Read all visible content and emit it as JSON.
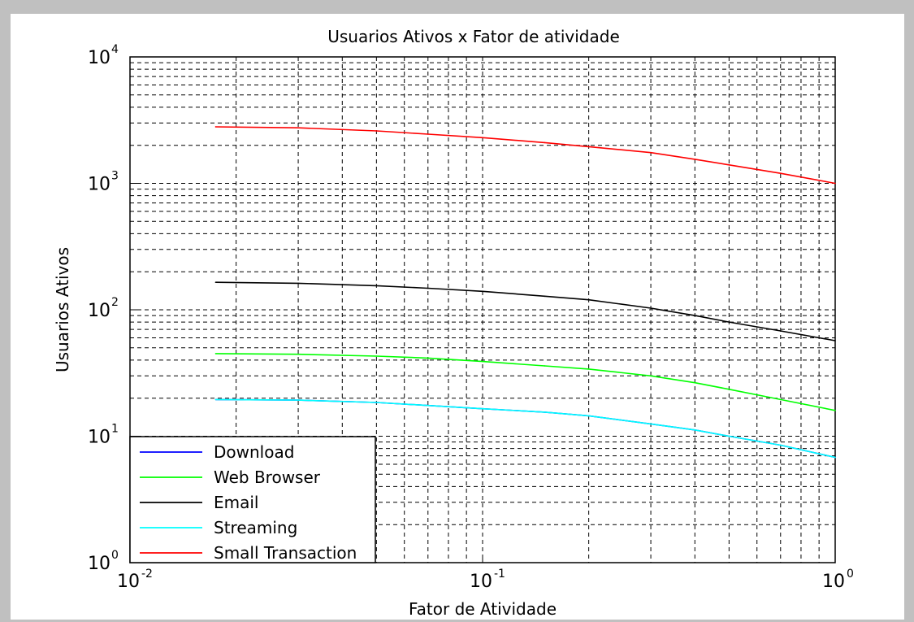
{
  "chart_data": {
    "type": "line",
    "title": "Usuarios Ativos x Fator de atividade",
    "xlabel": "Fator de Atividade",
    "ylabel": "Usuarios Ativos",
    "xscale": "log",
    "yscale": "log",
    "xlim": [
      0.01,
      1
    ],
    "ylim": [
      1,
      10000
    ],
    "grid": true,
    "grid_style": "dashed",
    "legend_position": "bottom-left",
    "x_ticks": [
      {
        "value": 0.01,
        "base": "10",
        "exp": "-2"
      },
      {
        "value": 0.1,
        "base": "10",
        "exp": "-1"
      },
      {
        "value": 1,
        "base": "10",
        "exp": "0"
      }
    ],
    "y_ticks": [
      {
        "value": 1,
        "base": "10",
        "exp": "0"
      },
      {
        "value": 10,
        "base": "10",
        "exp": "1"
      },
      {
        "value": 100,
        "base": "10",
        "exp": "2"
      },
      {
        "value": 1000,
        "base": "10",
        "exp": "3"
      },
      {
        "value": 10000,
        "base": "10",
        "exp": "4"
      }
    ],
    "x": [
      0.0175,
      0.03,
      0.05,
      0.07,
      0.1,
      0.15,
      0.2,
      0.3,
      0.4,
      0.5,
      0.7,
      1.0
    ],
    "series": [
      {
        "name": "Download",
        "color": "#0000ff",
        "values": [
          19.5,
          19.3,
          18.5,
          17.5,
          16.5,
          15.5,
          14.5,
          12.5,
          11.2,
          10,
          8.5,
          6.8
        ]
      },
      {
        "name": "Web Browser",
        "color": "#00ff00",
        "values": [
          45,
          44.5,
          43,
          41.5,
          39,
          36,
          34,
          30,
          26.5,
          23.5,
          19.5,
          16
        ]
      },
      {
        "name": "Email",
        "color": "#000000",
        "values": [
          165,
          162,
          155,
          148,
          140,
          128,
          120,
          103,
          90,
          80,
          68,
          57
        ]
      },
      {
        "name": "Streaming",
        "color": "#00ffff",
        "values": [
          19.5,
          19.3,
          18.5,
          17.5,
          16.5,
          15.5,
          14.5,
          12.5,
          11.2,
          10,
          8.5,
          6.8
        ]
      },
      {
        "name": "Small Transaction",
        "color": "#ff0000",
        "values": [
          2800,
          2750,
          2600,
          2450,
          2300,
          2100,
          1950,
          1750,
          1550,
          1400,
          1200,
          1000
        ]
      }
    ]
  }
}
